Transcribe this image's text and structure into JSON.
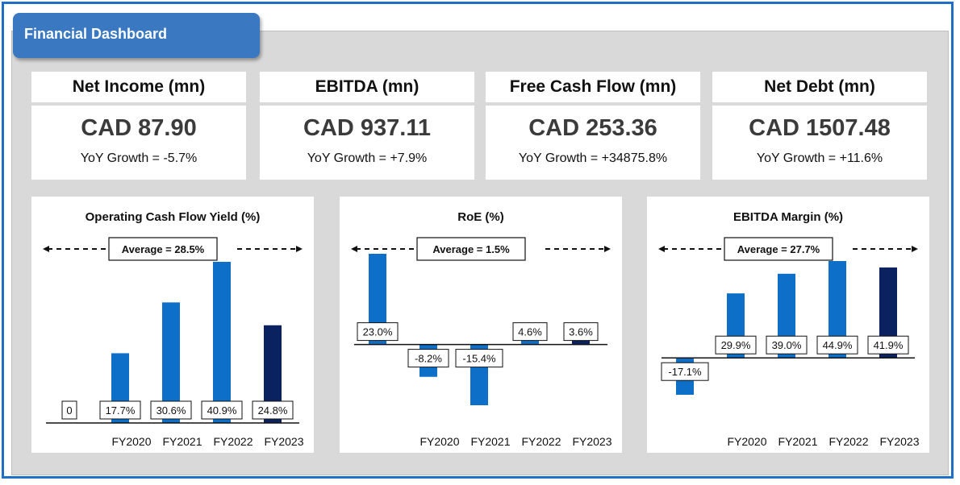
{
  "header": {
    "title": "Financial Dashboard"
  },
  "kpis": [
    {
      "label": "Net Income (mn)",
      "value": "CAD 87.90",
      "growth": "YoY Growth = -5.7%"
    },
    {
      "label": "EBITDA (mn)",
      "value": "CAD 937.11",
      "growth": "YoY Growth = +7.9%"
    },
    {
      "label": "Free Cash Flow (mn)",
      "value": "CAD 253.36",
      "growth": "YoY Growth = +34875.8%"
    },
    {
      "label": "Net Debt (mn)",
      "value": "CAD 1507.48",
      "growth": "YoY Growth = +11.6%"
    }
  ],
  "colors": {
    "bar": "#0d6fc8",
    "bar_latest": "#0a2260",
    "tab": "#3a78c2",
    "frame": "#1f6fc5"
  },
  "chart_data": [
    {
      "type": "bar",
      "title": "Operating Cash Flow Yield (%)",
      "average_label": "Average = 28.5%",
      "average": 28.5,
      "categories": [
        "",
        "FY2020",
        "FY2021",
        "FY2022",
        "FY2023"
      ],
      "values": [
        0,
        17.7,
        30.6,
        40.9,
        24.8
      ],
      "data_labels": [
        "0",
        "17.7%",
        "30.6%",
        "40.9%",
        "24.8%"
      ],
      "ylim": [
        0,
        40.9
      ]
    },
    {
      "type": "bar",
      "title": "RoE (%)",
      "average_label": "Average = 1.5%",
      "average": 1.5,
      "categories": [
        "",
        "FY2020",
        "FY2021",
        "FY2022",
        "FY2023"
      ],
      "values": [
        23.0,
        -8.2,
        -15.4,
        4.6,
        3.6
      ],
      "data_labels": [
        "23.0%",
        "-8.2%",
        "-15.4%",
        "4.6%",
        "3.6%"
      ],
      "ylim": [
        -15.4,
        23.0
      ]
    },
    {
      "type": "bar",
      "title": "EBITDA Margin (%)",
      "average_label": "Average = 27.7%",
      "average": 27.7,
      "categories": [
        "",
        "FY2020",
        "FY2021",
        "FY2022",
        "FY2023"
      ],
      "values": [
        -17.1,
        29.9,
        39.0,
        44.9,
        41.9
      ],
      "data_labels": [
        "-17.1%",
        "29.9%",
        "39.0%",
        "44.9%",
        "41.9%"
      ],
      "ylim": [
        -17.1,
        44.9
      ]
    }
  ]
}
